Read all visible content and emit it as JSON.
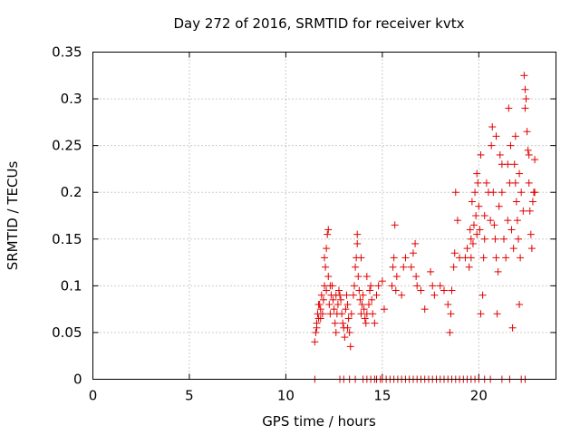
{
  "chart_data": {
    "type": "scatter",
    "title": "Day 272 of 2016, SRMTID for receiver kvtx",
    "xlabel": "GPS time / hours",
    "ylabel": "SRMTID / TECUs",
    "xlim": [
      0,
      24
    ],
    "ylim": [
      0,
      0.35
    ],
    "xticks": [
      0,
      5,
      10,
      15,
      20
    ],
    "xtick_labels": [
      "0",
      "5",
      "10",
      "15",
      "20"
    ],
    "yticks": [
      0,
      0.05,
      0.1,
      0.15,
      0.2,
      0.25,
      0.3,
      0.35
    ],
    "ytick_labels": [
      "0",
      "0.05",
      "0.1",
      "0.15",
      "0.2",
      "0.25",
      "0.3",
      "0.35"
    ],
    "grid": true,
    "marker": "+",
    "color": "#e00000",
    "series": [
      {
        "name": "SRMTID",
        "points": [
          [
            11.5,
            0.04
          ],
          [
            11.55,
            0.05
          ],
          [
            11.6,
            0.06
          ],
          [
            11.65,
            0.07
          ],
          [
            11.7,
            0.065
          ],
          [
            11.75,
            0.08
          ],
          [
            11.8,
            0.075
          ],
          [
            11.85,
            0.09
          ],
          [
            11.9,
            0.07
          ],
          [
            11.95,
            0.085
          ],
          [
            12.0,
            0.1
          ],
          [
            12.05,
            0.12
          ],
          [
            12.1,
            0.14
          ],
          [
            12.15,
            0.155
          ],
          [
            12.2,
            0.16
          ],
          [
            12.1,
            0.095
          ],
          [
            12.2,
            0.11
          ],
          [
            12.25,
            0.08
          ],
          [
            12.3,
            0.07
          ],
          [
            12.35,
            0.09
          ],
          [
            12.4,
            0.1
          ],
          [
            12.45,
            0.085
          ],
          [
            12.5,
            0.075
          ],
          [
            12.55,
            0.06
          ],
          [
            12.6,
            0.05
          ],
          [
            12.65,
            0.07
          ],
          [
            12.7,
            0.08
          ],
          [
            12.75,
            0.095
          ],
          [
            12.8,
            0.09
          ],
          [
            12.85,
            0.085
          ],
          [
            12.9,
            0.07
          ],
          [
            12.95,
            0.06
          ],
          [
            13.0,
            0.055
          ],
          [
            13.05,
            0.045
          ],
          [
            13.1,
            0.075
          ],
          [
            13.15,
            0.09
          ],
          [
            13.2,
            0.08
          ],
          [
            13.25,
            0.065
          ],
          [
            13.3,
            0.05
          ],
          [
            13.35,
            0.035
          ],
          [
            13.4,
            0.07
          ],
          [
            13.5,
            0.09
          ],
          [
            13.55,
            0.1
          ],
          [
            13.6,
            0.12
          ],
          [
            13.65,
            0.13
          ],
          [
            13.7,
            0.145
          ],
          [
            13.75,
            0.11
          ],
          [
            13.8,
            0.095
          ],
          [
            13.85,
            0.085
          ],
          [
            13.9,
            0.07
          ],
          [
            13.95,
            0.08
          ],
          [
            14.0,
            0.09
          ],
          [
            14.05,
            0.075
          ],
          [
            14.1,
            0.065
          ],
          [
            14.15,
            0.06
          ],
          [
            14.2,
            0.07
          ],
          [
            14.3,
            0.08
          ],
          [
            14.35,
            0.095
          ],
          [
            14.4,
            0.1
          ],
          [
            14.45,
            0.085
          ],
          [
            14.5,
            0.07
          ],
          [
            14.6,
            0.06
          ],
          [
            14.7,
            0.09
          ],
          [
            14.8,
            0.1
          ],
          [
            15.0,
            0.105
          ],
          [
            15.1,
            0.075
          ],
          [
            15.5,
            0.1
          ],
          [
            15.55,
            0.12
          ],
          [
            15.6,
            0.13
          ],
          [
            15.65,
            0.165
          ],
          [
            15.7,
            0.095
          ],
          [
            15.75,
            0.11
          ],
          [
            16.0,
            0.09
          ],
          [
            16.1,
            0.12
          ],
          [
            16.2,
            0.13
          ],
          [
            16.5,
            0.12
          ],
          [
            16.6,
            0.135
          ],
          [
            16.7,
            0.145
          ],
          [
            16.75,
            0.11
          ],
          [
            16.8,
            0.1
          ],
          [
            17.0,
            0.095
          ],
          [
            17.2,
            0.075
          ],
          [
            17.5,
            0.115
          ],
          [
            17.6,
            0.1
          ],
          [
            17.7,
            0.09
          ],
          [
            18.0,
            0.1
          ],
          [
            18.2,
            0.095
          ],
          [
            18.4,
            0.08
          ],
          [
            18.5,
            0.05
          ],
          [
            18.55,
            0.07
          ],
          [
            18.6,
            0.095
          ],
          [
            18.7,
            0.12
          ],
          [
            18.75,
            0.135
          ],
          [
            18.8,
            0.2
          ],
          [
            18.9,
            0.17
          ],
          [
            19.0,
            0.13
          ],
          [
            19.3,
            0.13
          ],
          [
            19.4,
            0.14
          ],
          [
            19.5,
            0.12
          ],
          [
            19.55,
            0.16
          ],
          [
            19.6,
            0.15
          ],
          [
            19.65,
            0.19
          ],
          [
            19.7,
            0.145
          ],
          [
            19.75,
            0.165
          ],
          [
            19.8,
            0.2
          ],
          [
            19.85,
            0.175
          ],
          [
            19.9,
            0.155
          ],
          [
            19.95,
            0.21
          ],
          [
            20.0,
            0.185
          ],
          [
            20.05,
            0.16
          ],
          [
            20.1,
            0.07
          ],
          [
            20.2,
            0.09
          ],
          [
            20.25,
            0.13
          ],
          [
            20.3,
            0.175
          ],
          [
            20.4,
            0.21
          ],
          [
            20.5,
            0.2
          ],
          [
            20.6,
            0.17
          ],
          [
            20.65,
            0.25
          ],
          [
            20.7,
            0.27
          ],
          [
            20.75,
            0.2
          ],
          [
            20.8,
            0.165
          ],
          [
            20.85,
            0.15
          ],
          [
            20.9,
            0.13
          ],
          [
            20.95,
            0.07
          ],
          [
            21.0,
            0.115
          ],
          [
            21.05,
            0.185
          ],
          [
            21.1,
            0.24
          ],
          [
            21.2,
            0.2
          ],
          [
            21.3,
            0.15
          ],
          [
            21.4,
            0.13
          ],
          [
            21.5,
            0.17
          ],
          [
            21.55,
            0.29
          ],
          [
            21.6,
            0.21
          ],
          [
            21.65,
            0.25
          ],
          [
            21.7,
            0.16
          ],
          [
            21.75,
            0.055
          ],
          [
            21.8,
            0.14
          ],
          [
            21.85,
            0.23
          ],
          [
            21.9,
            0.26
          ],
          [
            21.95,
            0.19
          ],
          [
            22.0,
            0.17
          ],
          [
            22.05,
            0.15
          ],
          [
            22.1,
            0.08
          ],
          [
            22.15,
            0.13
          ],
          [
            22.2,
            0.2
          ],
          [
            22.3,
            0.18
          ],
          [
            22.35,
            0.325
          ],
          [
            22.4,
            0.31
          ],
          [
            22.45,
            0.3
          ],
          [
            22.5,
            0.265
          ],
          [
            22.55,
            0.245
          ],
          [
            22.6,
            0.21
          ],
          [
            22.65,
            0.18
          ],
          [
            22.7,
            0.155
          ],
          [
            22.75,
            0.14
          ],
          [
            22.8,
            0.19
          ],
          [
            22.85,
            0.2
          ],
          [
            22.9,
            0.235
          ],
          [
            11.6,
            0.055
          ],
          [
            11.7,
            0.08
          ],
          [
            11.8,
            0.065
          ],
          [
            12.0,
            0.13
          ],
          [
            12.3,
            0.1
          ],
          [
            12.6,
            0.09
          ],
          [
            13.2,
            0.055
          ],
          [
            13.7,
            0.155
          ],
          [
            13.9,
            0.13
          ],
          [
            14.2,
            0.11
          ],
          [
            19.6,
            0.13
          ],
          [
            19.9,
            0.22
          ],
          [
            20.1,
            0.24
          ],
          [
            20.3,
            0.15
          ],
          [
            20.9,
            0.26
          ],
          [
            21.2,
            0.23
          ],
          [
            21.5,
            0.23
          ],
          [
            21.9,
            0.21
          ],
          [
            22.1,
            0.22
          ],
          [
            22.4,
            0.29
          ],
          [
            22.6,
            0.24
          ],
          [
            22.9,
            0.2
          ],
          [
            11.5,
            0.0
          ],
          [
            12.8,
            0.0
          ],
          [
            13.0,
            0.0
          ],
          [
            13.3,
            0.0
          ],
          [
            13.6,
            0.0
          ],
          [
            14.0,
            0.0
          ],
          [
            14.2,
            0.0
          ],
          [
            14.4,
            0.0
          ],
          [
            14.6,
            0.0
          ],
          [
            14.7,
            0.0
          ],
          [
            14.9,
            0.0
          ],
          [
            15.0,
            0.0
          ],
          [
            15.2,
            0.0
          ],
          [
            15.4,
            0.0
          ],
          [
            15.6,
            0.0
          ],
          [
            15.8,
            0.0
          ],
          [
            16.0,
            0.0
          ],
          [
            16.2,
            0.0
          ],
          [
            16.4,
            0.0
          ],
          [
            16.6,
            0.0
          ],
          [
            16.8,
            0.0
          ],
          [
            17.0,
            0.0
          ],
          [
            17.2,
            0.0
          ],
          [
            17.4,
            0.0
          ],
          [
            17.6,
            0.0
          ],
          [
            17.8,
            0.0
          ],
          [
            18.0,
            0.0
          ],
          [
            18.2,
            0.0
          ],
          [
            18.4,
            0.0
          ],
          [
            18.6,
            0.0
          ],
          [
            18.8,
            0.0
          ],
          [
            19.0,
            0.0
          ],
          [
            19.2,
            0.0
          ],
          [
            19.4,
            0.0
          ],
          [
            19.6,
            0.0
          ],
          [
            19.8,
            0.0
          ],
          [
            20.0,
            0.0
          ],
          [
            20.3,
            0.0
          ],
          [
            20.6,
            0.0
          ],
          [
            21.2,
            0.0
          ],
          [
            21.6,
            0.0
          ],
          [
            22.2,
            0.0
          ],
          [
            22.4,
            0.0
          ]
        ]
      }
    ]
  }
}
